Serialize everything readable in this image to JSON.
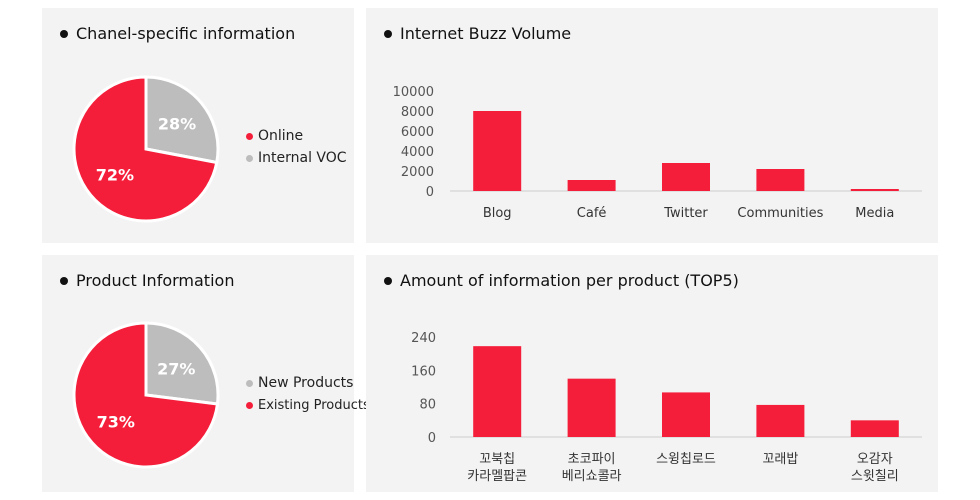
{
  "colors": {
    "red": "#f51e3a",
    "gray": "#bdbdbd",
    "axis": "#cccccc",
    "text": "#555555"
  },
  "chart_data": [
    {
      "type": "pie",
      "title": "Chanel-specific information",
      "slices": [
        {
          "label": "Online",
          "value": 72,
          "display": "72%",
          "color": "#f51e3a"
        },
        {
          "label": "Internal VOC",
          "value": 28,
          "display": "28%",
          "color": "#bdbdbd"
        }
      ],
      "legend": [
        "Online",
        "Internal VOC"
      ],
      "legend_position": "right"
    },
    {
      "type": "bar",
      "title": "Internet Buzz Volume",
      "categories": [
        "Blog",
        "Café",
        "Twitter",
        "Communities",
        "Media"
      ],
      "values": [
        8000,
        1100,
        2800,
        2200,
        200
      ],
      "ylim": [
        0,
        10000
      ],
      "yticks": [
        "0",
        "2000",
        "4000",
        "6000",
        "8000",
        "10000"
      ],
      "grid": false
    },
    {
      "type": "pie",
      "title": "Product Information",
      "slices": [
        {
          "label": "New Products",
          "value": 27,
          "display": "27%",
          "color": "#bdbdbd"
        },
        {
          "label": "Existing Products",
          "value": 73,
          "display": "73%",
          "color": "#f51e3a"
        }
      ],
      "legend": [
        "New Products",
        "Existing Products"
      ],
      "legend_position": "right"
    },
    {
      "type": "bar",
      "title": "Amount of information per product (TOP5)",
      "categories": [
        [
          "꼬북칩",
          "카라멜팝콘"
        ],
        [
          "초코파이",
          "베리쇼콜라"
        ],
        [
          "스윙칩로드"
        ],
        [
          "꼬래밥"
        ],
        [
          "오감자",
          "스윗칠리"
        ]
      ],
      "values": [
        218,
        140,
        107,
        77,
        40
      ],
      "ylim": [
        0,
        240
      ],
      "yticks": [
        "0",
        "80",
        "160",
        "240"
      ],
      "grid": false
    }
  ]
}
